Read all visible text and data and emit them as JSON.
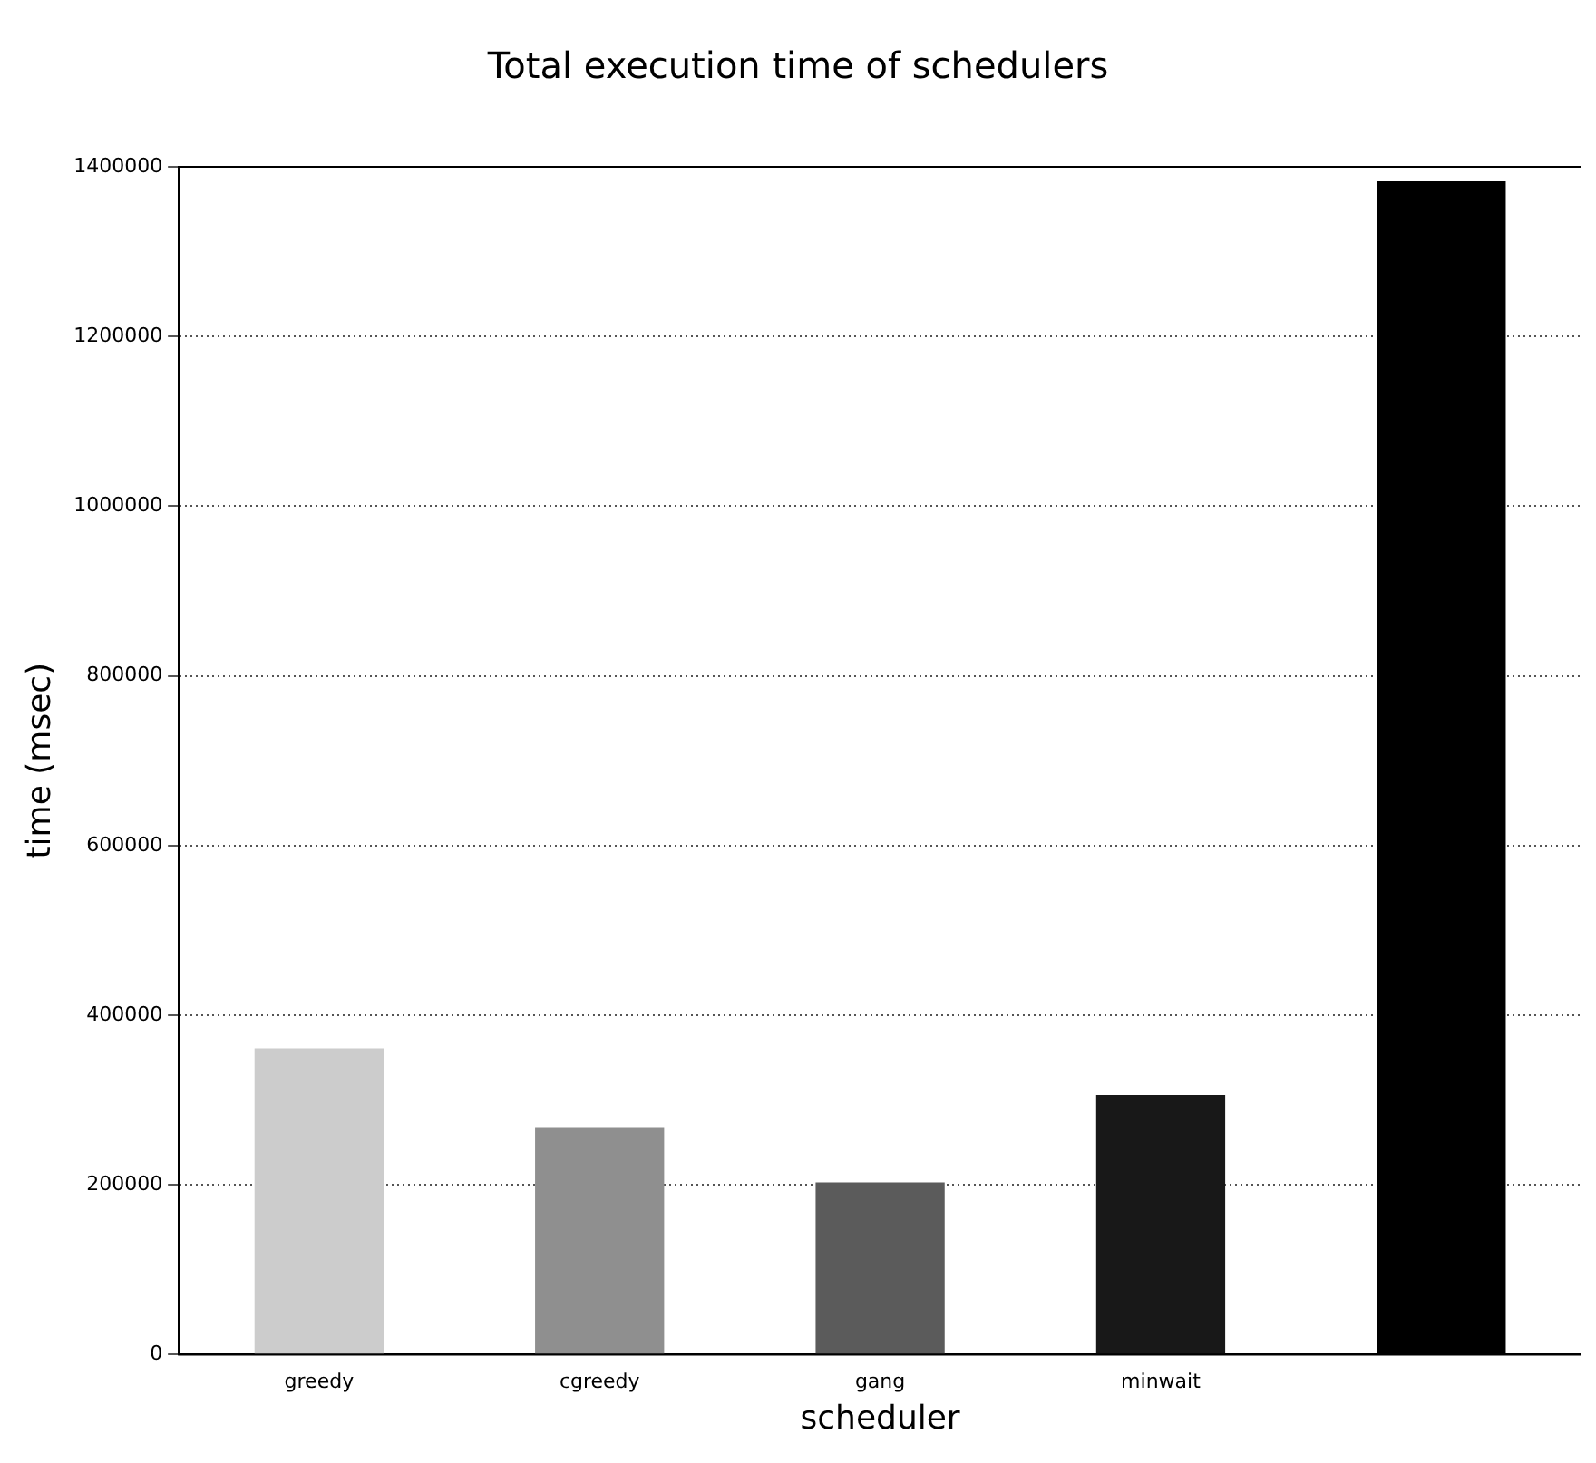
{
  "chart_data": {
    "type": "bar",
    "title": "Total execution time of schedulers",
    "xlabel": "scheduler",
    "ylabel": "time (msec)",
    "categories": [
      "greedy",
      "cgreedy",
      "gang",
      "minwait",
      null
    ],
    "values": [
      361000,
      268000,
      203000,
      306000,
      1383000
    ],
    "colors": [
      "#cccccc",
      "#8f8f8f",
      "#5b5b5b",
      "#181818",
      "#000000"
    ],
    "ylim": [
      0,
      1400000
    ],
    "yticks": [
      0,
      200000,
      400000,
      600000,
      800000,
      1000000,
      1200000,
      1400000
    ],
    "grid": "y",
    "legend": false
  }
}
